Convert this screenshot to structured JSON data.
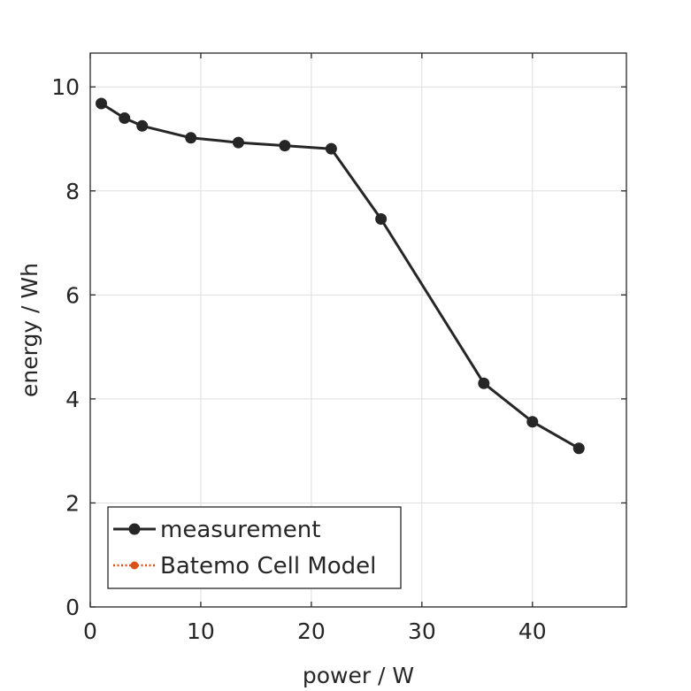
{
  "chart_data": {
    "type": "line",
    "xlabel": "power / W",
    "ylabel": "energy / Wh",
    "xlim": [
      0,
      48.5
    ],
    "ylim": [
      0,
      10.65
    ],
    "xticks": [
      0,
      10,
      20,
      30,
      40
    ],
    "yticks": [
      0,
      2,
      4,
      6,
      8,
      10
    ],
    "xtick_labels": [
      "0",
      "10",
      "20",
      "30",
      "40"
    ],
    "ytick_labels": [
      "0",
      "2",
      "4",
      "6",
      "8",
      "10"
    ],
    "grid": true,
    "legend_position": "bottom-left",
    "series": [
      {
        "name": "measurement",
        "color": "#262626",
        "line_style": "solid",
        "marker": "circle",
        "x": [
          1.0,
          3.1,
          4.7,
          9.1,
          13.4,
          17.6,
          21.8,
          26.3,
          35.6,
          40.0,
          44.2
        ],
        "y": [
          9.68,
          9.4,
          9.25,
          9.02,
          8.93,
          8.87,
          8.81,
          7.46,
          4.3,
          3.56,
          3.05
        ]
      },
      {
        "name": "Batemo Cell Model",
        "color": "#d95319",
        "line_style": "dotted",
        "marker": "circle",
        "x": [],
        "y": []
      }
    ]
  }
}
